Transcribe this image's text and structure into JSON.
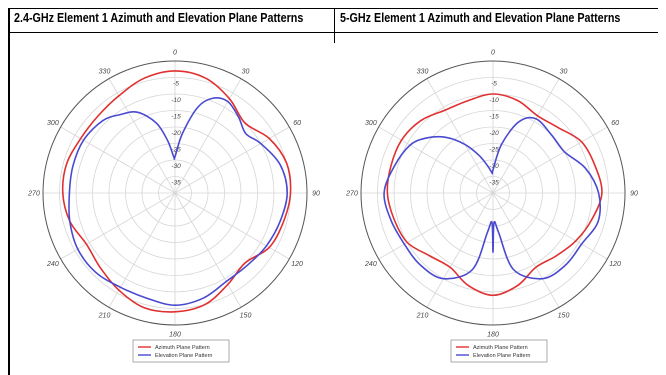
{
  "chart_data": [
    {
      "type": "line",
      "title": "2.4-GHz Element 1 Azimuth and Elevation Plane Patterns",
      "projection": "polar",
      "angle_ticks": [
        "0",
        "30",
        "60",
        "90",
        "120",
        "150",
        "180",
        "210",
        "240",
        "270",
        "300",
        "330"
      ],
      "radial_ticks": [
        "-5",
        "-10",
        "-15",
        "-20",
        "-25",
        "-30",
        "-35"
      ],
      "rlim": [
        -40,
        0
      ],
      "grid": true,
      "legend": "bottom-center",
      "series": [
        {
          "name": "Azimuth Plane Pattern",
          "color": "#e03030",
          "angles": [
            0,
            15,
            30,
            45,
            60,
            75,
            90,
            105,
            120,
            135,
            150,
            165,
            180,
            195,
            210,
            225,
            240,
            255,
            270,
            285,
            300,
            315,
            330,
            345
          ],
          "values": [
            -3,
            -4,
            -7,
            -10,
            -7,
            -5,
            -5,
            -6,
            -7,
            -10,
            -8,
            -5,
            -4,
            -4,
            -6,
            -8,
            -9,
            -7,
            -6,
            -6,
            -7,
            -7,
            -6,
            -4
          ]
        },
        {
          "name": "Elevation Plane Pattern",
          "color": "#4a4ad0",
          "angles": [
            0,
            7,
            15,
            22,
            30,
            40,
            50,
            60,
            75,
            90,
            105,
            120,
            135,
            150,
            165,
            180,
            195,
            210,
            225,
            240,
            255,
            270,
            285,
            300,
            315,
            325,
            335,
            345,
            352,
            358
          ],
          "values": [
            -29,
            -22,
            -13,
            -9,
            -8,
            -10,
            -12,
            -10,
            -7,
            -6,
            -7,
            -8,
            -9,
            -9,
            -7,
            -6,
            -7,
            -7,
            -6,
            -6,
            -7,
            -8,
            -8,
            -8,
            -9,
            -11,
            -13,
            -18,
            -24,
            -29
          ]
        }
      ]
    },
    {
      "type": "line",
      "title": "5-GHz Element 1 Azimuth and Elevation Plane Patterns",
      "projection": "polar",
      "angle_ticks": [
        "0",
        "30",
        "60",
        "90",
        "120",
        "150",
        "180",
        "210",
        "240",
        "270",
        "300",
        "330"
      ],
      "radial_ticks": [
        "-5",
        "-10",
        "-15",
        "-20",
        "-25",
        "-30",
        "-35"
      ],
      "rlim": [
        -40,
        0
      ],
      "grid": true,
      "legend": "bottom-center",
      "series": [
        {
          "name": "Azimuth Plane Pattern",
          "color": "#e03030",
          "angles": [
            0,
            15,
            30,
            45,
            60,
            75,
            90,
            105,
            120,
            135,
            150,
            165,
            180,
            195,
            210,
            225,
            240,
            255,
            270,
            285,
            300,
            315,
            330,
            345
          ],
          "values": [
            -10,
            -11,
            -13,
            -12,
            -9,
            -8,
            -7,
            -9,
            -11,
            -13,
            -14,
            -11,
            -9,
            -11,
            -14,
            -13,
            -10,
            -9,
            -8,
            -8,
            -8,
            -9,
            -11,
            -11
          ]
        },
        {
          "name": "Elevation Plane Pattern",
          "color": "#4a4ad0",
          "angles": [
            0,
            10,
            20,
            30,
            45,
            60,
            75,
            90,
            105,
            120,
            135,
            150,
            165,
            172,
            178,
            180,
            182,
            188,
            195,
            210,
            225,
            240,
            255,
            270,
            285,
            300,
            310,
            320,
            330,
            340,
            350,
            358
          ],
          "values": [
            -33,
            -25,
            -17,
            -14,
            -15,
            -15,
            -11,
            -8,
            -7,
            -9,
            -9,
            -10,
            -16,
            -28,
            -31,
            -22,
            -31,
            -28,
            -16,
            -10,
            -9,
            -9,
            -8,
            -7,
            -9,
            -11,
            -14,
            -18,
            -23,
            -28,
            -32,
            -34
          ]
        }
      ]
    }
  ]
}
